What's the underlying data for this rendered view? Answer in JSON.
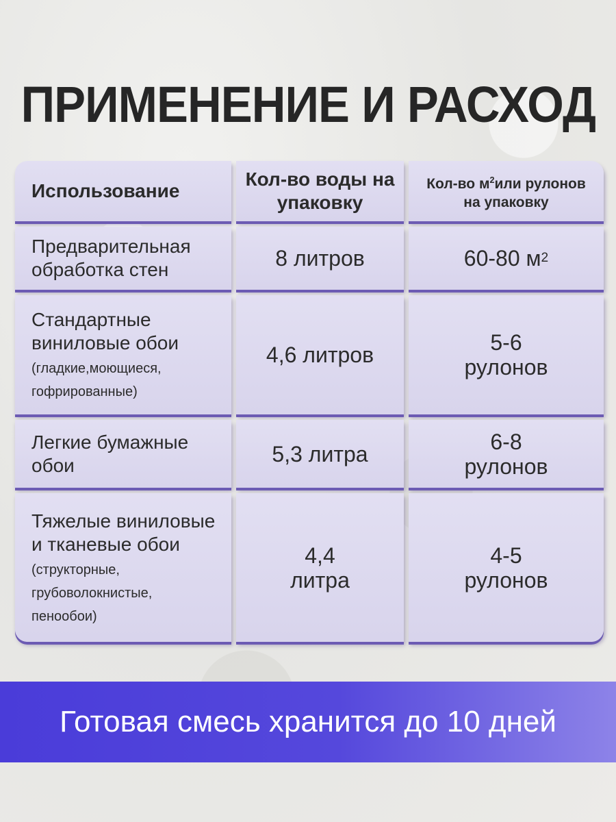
{
  "title": "ПРИМЕНЕНИЕ И РАСХОД",
  "table": {
    "headers": [
      "Использование",
      "Кол-во воды на упаковку",
      "Кол-во м",
      "2",
      "или рулонов на упаковку"
    ],
    "rows": [
      {
        "usage": "Предварительная обработка стен",
        "note": "",
        "water": "8 литров",
        "coverage": "60-80 м",
        "coverage_sup": "2"
      },
      {
        "usage": "Стандартные виниловые обои",
        "note": "(гладкие,моющиеся, гофрированные)",
        "water": "4,6 литров",
        "coverage": "5-6 рулонов",
        "coverage_sup": ""
      },
      {
        "usage": "Легкие бумажные обои",
        "note": "",
        "water": "5,3 литра",
        "coverage": "6-8 рулонов",
        "coverage_sup": ""
      },
      {
        "usage": "Тяжелые виниловые и тканевые обои",
        "note": "(структорные, грубоволокнистые, пенообои)",
        "water": "4,4 литра",
        "coverage": "4-5 рулонов",
        "coverage_sup": ""
      }
    ]
  },
  "banner": "Готовая смесь хранится до 10 дней",
  "colors": {
    "cell": "#dcd8ee",
    "shadow": "#6c5bb3",
    "banner": "#4a3cd9",
    "title": "#262626"
  }
}
